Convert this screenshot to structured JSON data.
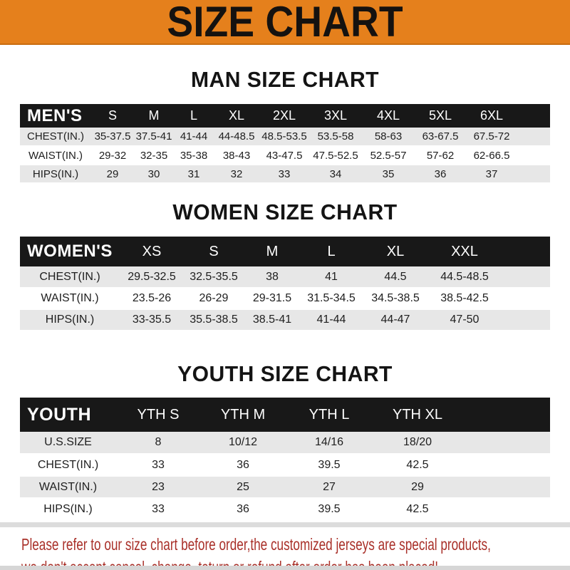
{
  "banner": {
    "title": "SIZE CHART",
    "bg_color": "#E5801C",
    "text_color": "#151210"
  },
  "sections": [
    {
      "heading": "MAN SIZE CHART",
      "label": "MEN'S",
      "columns": [
        "S",
        "M",
        "L",
        "XL",
        "2XL",
        "3XL",
        "4XL",
        "5XL",
        "6XL"
      ],
      "rows": [
        {
          "label": "CHEST(IN.)",
          "values": [
            "35-37.5",
            "37.5-41",
            "41-44",
            "44-48.5",
            "48.5-53.5",
            "53.5-58",
            "58-63",
            "63-67.5",
            "67.5-72"
          ]
        },
        {
          "label": "WAIST(IN.)",
          "values": [
            "29-32",
            "32-35",
            "35-38",
            "38-43",
            "43-47.5",
            "47.5-52.5",
            "52.5-57",
            "57-62",
            "62-66.5"
          ]
        },
        {
          "label": "HIPS(IN.)",
          "values": [
            "29",
            "30",
            "31",
            "32",
            "33",
            "34",
            "35",
            "36",
            "37"
          ]
        }
      ]
    },
    {
      "heading": "WOMEN SIZE CHART",
      "label": "WOMEN'S",
      "columns": [
        "XS",
        "S",
        "M",
        "L",
        "XL",
        "XXL"
      ],
      "rows": [
        {
          "label": "CHEST(IN.)",
          "values": [
            "29.5-32.5",
            "32.5-35.5",
            "38",
            "41",
            "44.5",
            "44.5-48.5"
          ]
        },
        {
          "label": "WAIST(IN.)",
          "values": [
            "23.5-26",
            "26-29",
            "29-31.5",
            "31.5-34.5",
            "34.5-38.5",
            "38.5-42.5"
          ]
        },
        {
          "label": "HIPS(IN.)",
          "values": [
            "33-35.5",
            "35.5-38.5",
            "38.5-41",
            "41-44",
            "44-47",
            "47-50"
          ]
        }
      ]
    },
    {
      "heading": "YOUTH SIZE CHART",
      "label": "YOUTH",
      "columns": [
        "YTH S",
        "YTH M",
        "YTH L",
        "YTH XL"
      ],
      "rows": [
        {
          "label": "U.S.SIZE",
          "values": [
            "8",
            "10/12",
            "14/16",
            "18/20"
          ]
        },
        {
          "label": "CHEST(IN.)",
          "values": [
            "33",
            "36",
            "39.5",
            "42.5"
          ]
        },
        {
          "label": "WAIST(IN.)",
          "values": [
            "23",
            "25",
            "27",
            "29"
          ]
        },
        {
          "label": "HIPS(IN.)",
          "values": [
            "33",
            "36",
            "39.5",
            "42.5"
          ]
        }
      ]
    }
  ],
  "footer": {
    "line1": "Please refer to our size chart before order,the customized jerseys are special products,",
    "line2": "we don't accept cancel, change, teturn or refund after order has been placed!",
    "text_color": "#a93029"
  }
}
